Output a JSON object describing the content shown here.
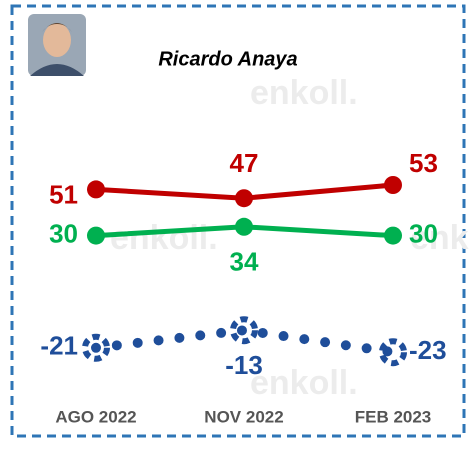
{
  "chart_data": {
    "type": "line",
    "title": "Ricardo Anaya",
    "watermark": "enkoll.",
    "categories": [
      "AGO 2022",
      "NOV 2022",
      "FEB 2023"
    ],
    "series": [
      {
        "color": "#c00000",
        "values": [
          51,
          47,
          53
        ],
        "style": "solid"
      },
      {
        "color": "#00b050",
        "values": [
          30,
          34,
          30
        ],
        "style": "solid"
      },
      {
        "color": "#1f4e9a",
        "values": [
          -21,
          -13,
          -23
        ],
        "style": "dotted"
      }
    ]
  }
}
